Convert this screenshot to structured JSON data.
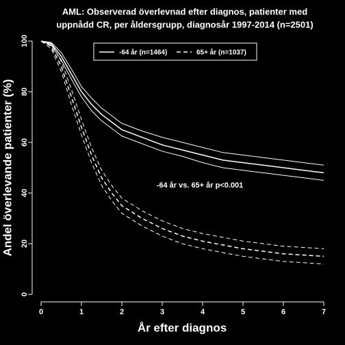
{
  "chart_data": {
    "type": "line",
    "title": "AML: Observerad överlevnad efter diagnos, patienter med",
    "subtitle": "uppnådd CR, per åldersgrupp, diagnosår 1997-2014 (n=2501)",
    "x_label": "År efter diagnos",
    "y_label": "Andel överlevande patienter (%)",
    "annotation": "-64 år vs. 65+ år p<0.001",
    "x": [
      0,
      0.25,
      0.5,
      0.75,
      1,
      1.25,
      1.5,
      1.75,
      2,
      2.5,
      3,
      3.5,
      4,
      4.5,
      5,
      5.5,
      6,
      6.5,
      7
    ],
    "series": [
      {
        "name": "-64 år (n=1464)",
        "color": "#ffffff",
        "dash": "none",
        "values": [
          100,
          99,
          94,
          87,
          80,
          75,
          71,
          68,
          65,
          62,
          59,
          57,
          55,
          53,
          52,
          51,
          50,
          49,
          48
        ],
        "lower": [
          100,
          98.5,
          92.5,
          85,
          78,
          72.5,
          68.5,
          65.5,
          62.5,
          59.5,
          56.5,
          54.5,
          52,
          50,
          49,
          48,
          47,
          46,
          45
        ],
        "upper": [
          100,
          99.5,
          95.5,
          89,
          82,
          77.5,
          73.5,
          70.5,
          67.5,
          64.5,
          62,
          60,
          58,
          56,
          55,
          54,
          53,
          52,
          51
        ]
      },
      {
        "name": "65+ år (n=1037)",
        "color": "#ffffff",
        "dash": "6,4",
        "values": [
          100,
          98,
          90,
          78,
          66,
          55,
          46,
          40,
          35,
          30,
          26,
          23,
          21,
          19.5,
          18,
          17,
          16,
          15.5,
          15
        ],
        "lower": [
          100,
          97,
          88,
          75,
          63,
          52,
          43,
          37,
          32,
          27,
          23,
          20,
          18,
          16.5,
          15,
          14,
          13,
          12.5,
          12
        ],
        "upper": [
          100,
          99,
          92,
          81,
          69,
          58,
          49,
          43,
          38,
          33,
          29,
          26,
          24,
          22.5,
          21,
          20,
          19,
          18.5,
          18
        ]
      }
    ],
    "xlim": [
      0,
      7
    ],
    "xticks": [
      0,
      1,
      2,
      3,
      4,
      5,
      6,
      7
    ],
    "ylim": [
      0,
      100
    ],
    "yticks": [
      0,
      20,
      40,
      60,
      80,
      100
    ],
    "grid": false,
    "background": "#000000",
    "legend": "top"
  }
}
